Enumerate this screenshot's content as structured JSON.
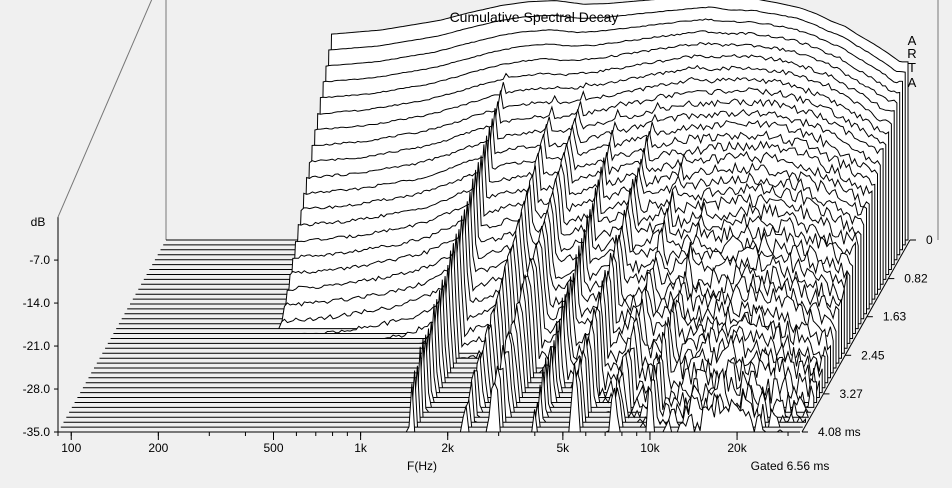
{
  "window": {
    "background": "#f0f0f0"
  },
  "chart_data": {
    "type": "waterfall",
    "title": "Cumulative Spectral Decay",
    "watermark": [
      "A",
      "R",
      "T",
      "A"
    ],
    "xlabel": "F(Hz)",
    "ylabel": "dB",
    "zlabel": "Gated 6.56 ms",
    "x_scale": "log",
    "x_range": [
      90,
      33000
    ],
    "x_ticks": [
      {
        "value": 100,
        "label": "100"
      },
      {
        "value": 200,
        "label": "200"
      },
      {
        "value": 500,
        "label": "500"
      },
      {
        "value": 1000,
        "label": "1k"
      },
      {
        "value": 2000,
        "label": "2k"
      },
      {
        "value": 5000,
        "label": "5k"
      },
      {
        "value": 10000,
        "label": "10k"
      },
      {
        "value": 20000,
        "label": "20k"
      }
    ],
    "y_range": [
      -35,
      0
    ],
    "y_ticks": [
      {
        "value": -7,
        "label": "-7.0"
      },
      {
        "value": -14,
        "label": "-14.0"
      },
      {
        "value": -21,
        "label": "-21.0"
      },
      {
        "value": -28,
        "label": "-28.0"
      },
      {
        "value": -35,
        "label": "-35.0"
      }
    ],
    "time_range_ms": [
      0,
      4.08
    ],
    "time_ticks": [
      {
        "value": 0,
        "label": "0"
      },
      {
        "value": 0.82,
        "label": "0.82"
      },
      {
        "value": 1.63,
        "label": "1.63"
      },
      {
        "value": 2.45,
        "label": "2.45"
      },
      {
        "value": 3.27,
        "label": "3.27"
      },
      {
        "value": 4.08,
        "label": "4.08 ms"
      }
    ],
    "grid": true,
    "slice_count": 40,
    "response_start_hz": 330,
    "initial_response": {
      "freqs": [
        330,
        500,
        800,
        1000,
        1300,
        1600,
        2000,
        2500,
        3000,
        4000,
        5000,
        6000,
        7000,
        8000,
        10000,
        12000,
        14000,
        16000,
        18000,
        20000,
        22000,
        25000,
        28000,
        31000
      ],
      "db": [
        -1.5,
        -0.8,
        0.8,
        2.0,
        3.2,
        3.8,
        4.0,
        3.4,
        3.5,
        4.0,
        4.4,
        4.7,
        4.9,
        4.4,
        4.2,
        3.5,
        2.8,
        1.8,
        0.6,
        -0.2,
        -1.5,
        -3.0,
        -4.5,
        -6.0
      ]
    },
    "decay_peaks_hz": [
      1500,
      2300,
      2900,
      4000,
      5500,
      7500,
      10000,
      13500,
      17000,
      22000
    ],
    "series_color": "#000000",
    "floor_color": "#ffffff"
  }
}
